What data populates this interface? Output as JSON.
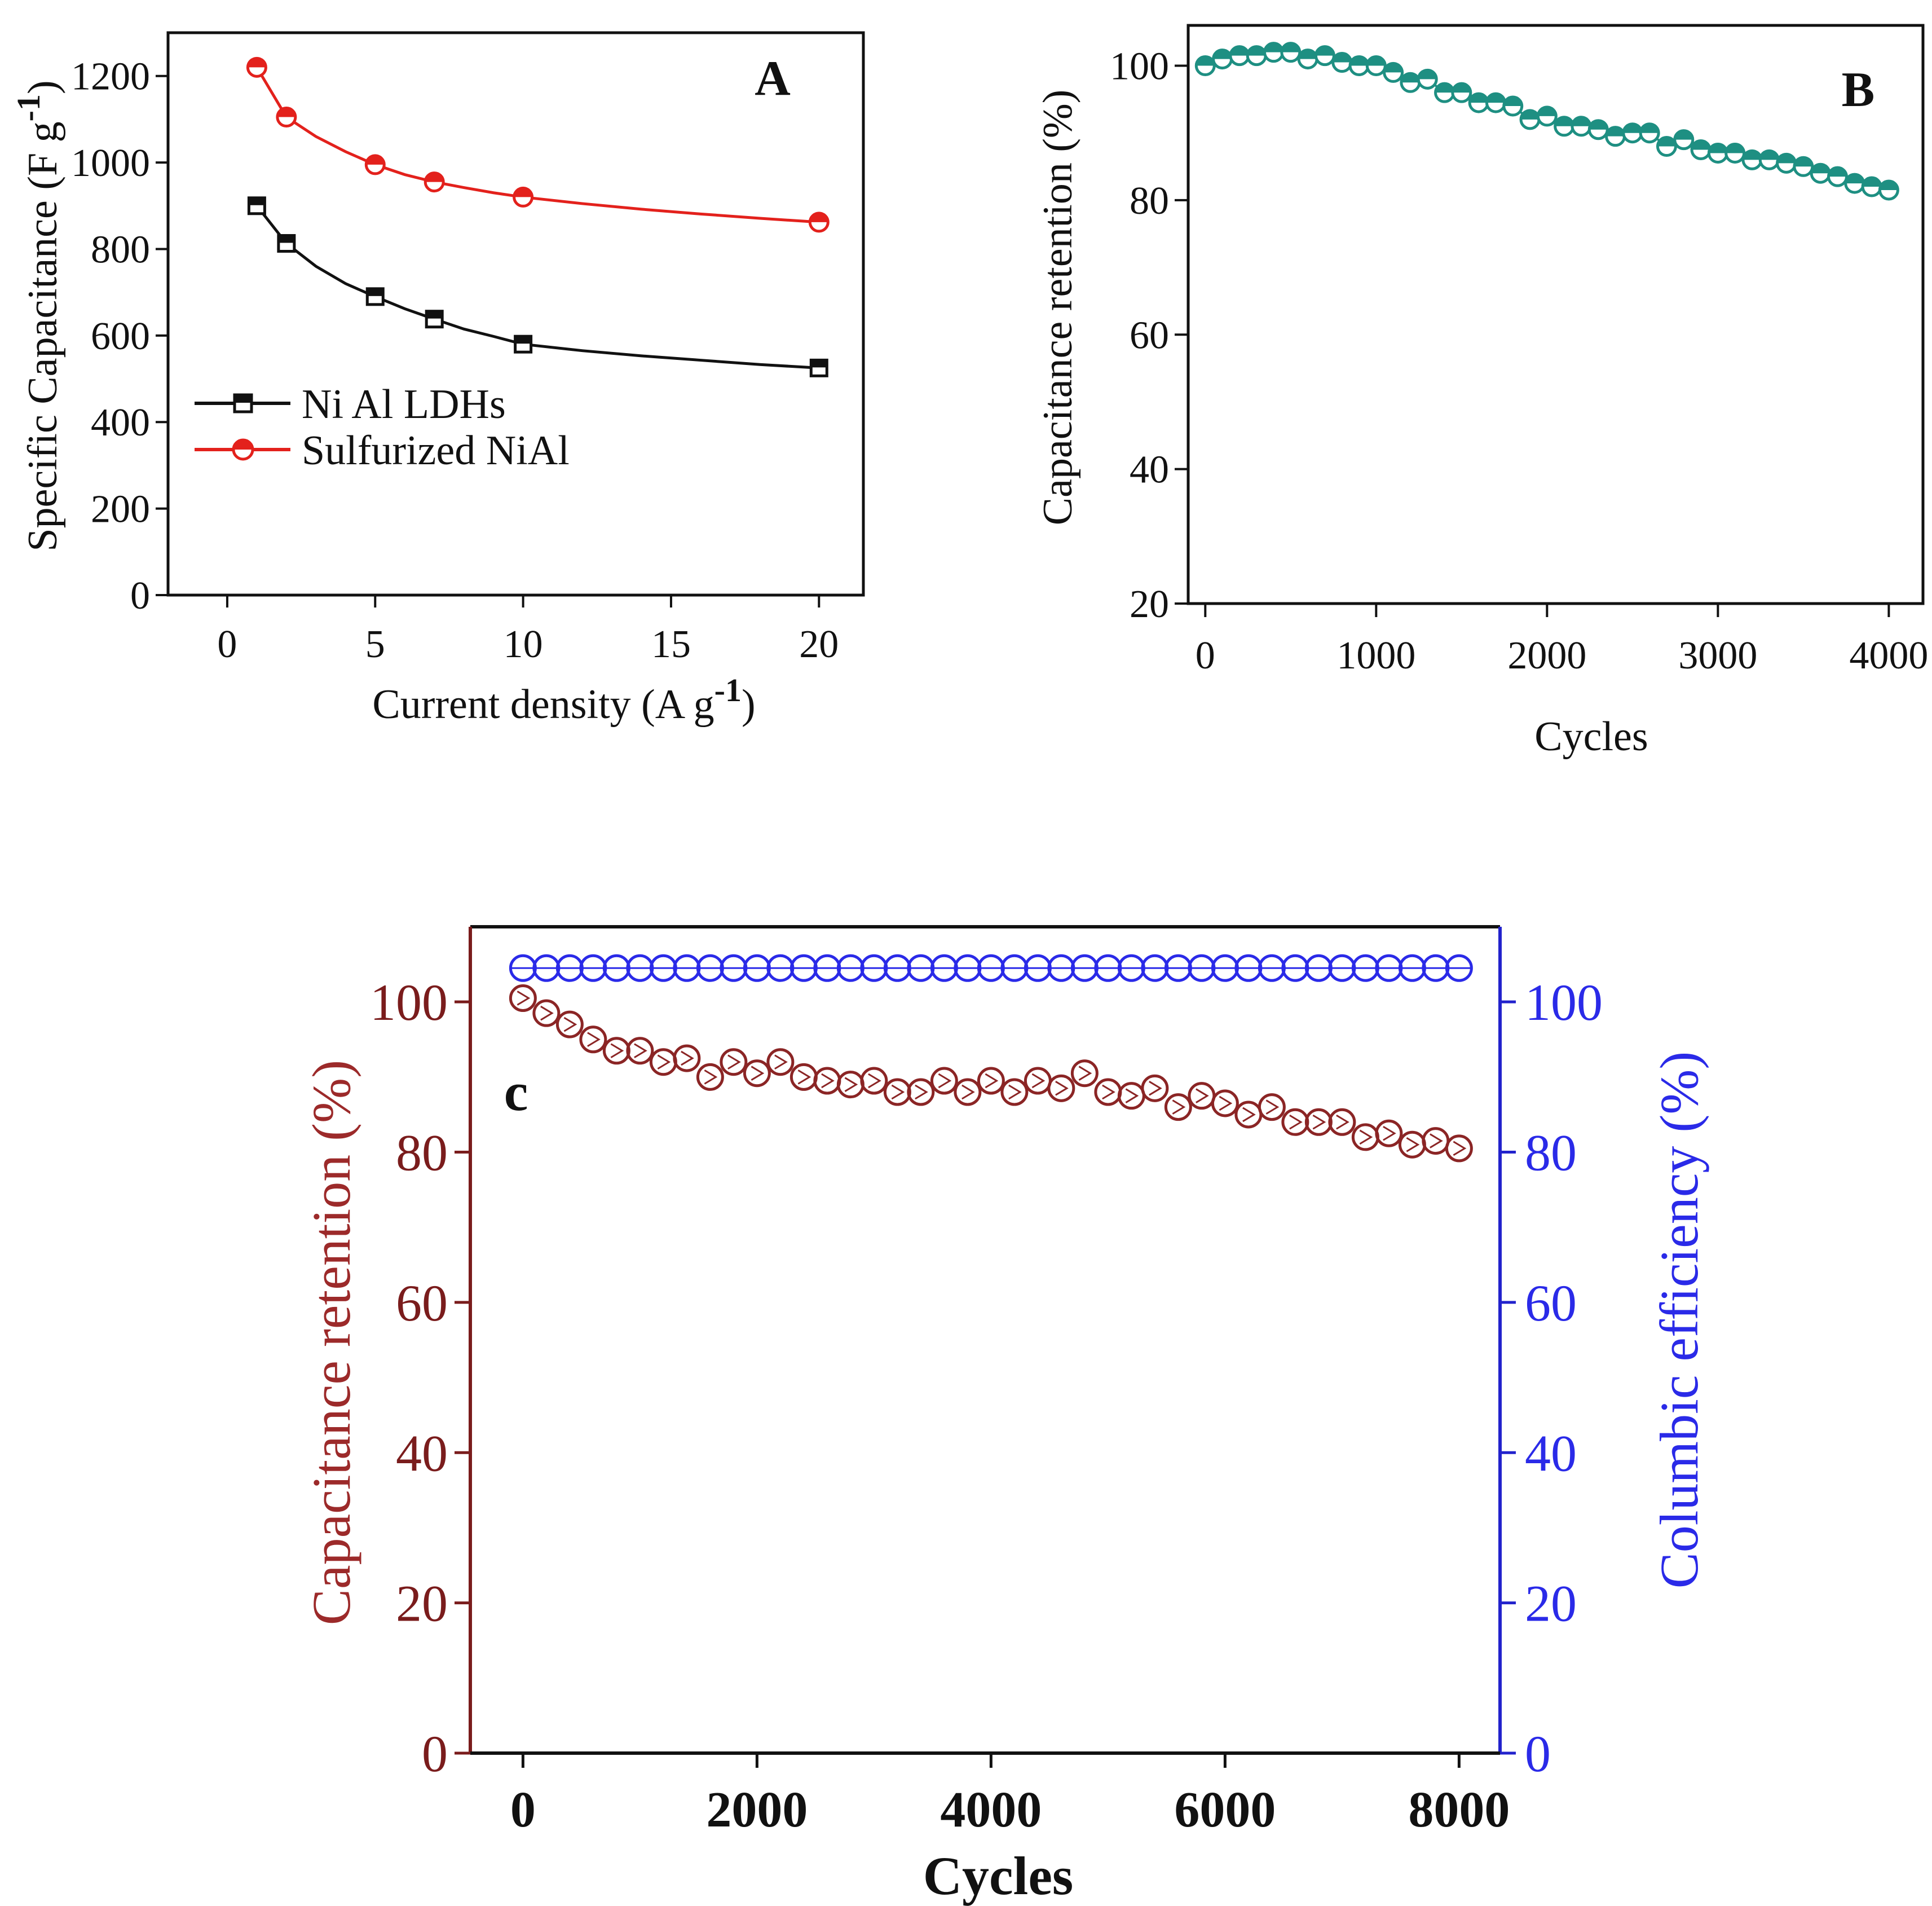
{
  "chart_data": [
    {
      "panel": "A",
      "type": "line",
      "panel_label": "A",
      "xlabel": "Current density (A g",
      "xlabel_sup": "-1",
      "xlabel_close": ")",
      "ylabel": "Specific Capacitance (F g",
      "ylabel_sup": "-1",
      "ylabel_close": ")",
      "xlim": [
        -2,
        21.5
      ],
      "ylim": [
        0,
        1300
      ],
      "xticks": [
        0,
        5,
        10,
        15,
        20
      ],
      "xtick_labels": [
        "0",
        "5",
        "10",
        "15",
        "20"
      ],
      "yticks": [
        0,
        200,
        400,
        600,
        800,
        1000,
        1200
      ],
      "ytick_labels": [
        "0",
        "200",
        "400",
        "600",
        "800",
        "1000",
        "1200"
      ],
      "legend_position": "center-left",
      "series": [
        {
          "name": "Ni Al LDHs",
          "color": "#111111",
          "marker": "square",
          "x": [
            1,
            2,
            5,
            7,
            10,
            20
          ],
          "y": [
            900,
            813,
            690,
            638,
            580,
            525
          ],
          "curve_x": [
            1,
            2,
            3,
            4,
            5,
            6,
            7,
            8,
            9,
            10,
            12,
            14,
            16,
            18,
            20
          ],
          "curve_y": [
            900,
            813,
            760,
            720,
            690,
            662,
            638,
            615,
            598,
            580,
            565,
            553,
            543,
            533,
            525
          ]
        },
        {
          "name": "Sulfurized NiAl",
          "color": "#e3211c",
          "marker": "circle",
          "x": [
            1,
            2,
            5,
            7,
            10,
            20
          ],
          "y": [
            1220,
            1105,
            995,
            955,
            920,
            862
          ],
          "curve_x": [
            1,
            2,
            3,
            4,
            5,
            6,
            7,
            8,
            9,
            10,
            12,
            14,
            16,
            18,
            20
          ],
          "curve_y": [
            1220,
            1105,
            1060,
            1025,
            995,
            972,
            955,
            942,
            930,
            920,
            905,
            892,
            881,
            871,
            862
          ]
        }
      ]
    },
    {
      "panel": "B",
      "type": "line",
      "panel_label": "B",
      "xlabel": "Cycles",
      "ylabel": "Capacitance retention (%)",
      "xlim": [
        -100,
        4200
      ],
      "ylim": [
        20,
        106
      ],
      "xticks": [
        0,
        1000,
        2000,
        3000,
        4000
      ],
      "xtick_labels": [
        "0",
        "1000",
        "2000",
        "3000",
        "4000"
      ],
      "yticks": [
        20,
        40,
        60,
        80,
        100
      ],
      "ytick_labels": [
        "20",
        "40",
        "60",
        "80",
        "100"
      ],
      "series": [
        {
          "name": "Capacitance retention",
          "color": "#1e8f82",
          "marker": "circle",
          "x": [
            0,
            100,
            200,
            300,
            400,
            500,
            600,
            700,
            800,
            900,
            1000,
            1100,
            1200,
            1300,
            1400,
            1500,
            1600,
            1700,
            1800,
            1900,
            2000,
            2100,
            2200,
            2300,
            2400,
            2500,
            2600,
            2700,
            2800,
            2900,
            3000,
            3100,
            3200,
            3300,
            3400,
            3500,
            3600,
            3700,
            3800,
            3900,
            4000
          ],
          "y": [
            100,
            101,
            101.5,
            101.5,
            102,
            102,
            101,
            101.5,
            100.5,
            100,
            100,
            99,
            97.5,
            98,
            96,
            96,
            94.5,
            94.5,
            94,
            92,
            92.5,
            91,
            91,
            90.5,
            89.5,
            90,
            90,
            88,
            89,
            87.5,
            87,
            87,
            86,
            86,
            85.5,
            85,
            84,
            83.5,
            82.5,
            82,
            81.5
          ]
        }
      ]
    },
    {
      "panel": "c",
      "type": "scatter",
      "panel_label": "c",
      "xlabel": "Cycles",
      "ylabel_left": "Capacitance retention (%)",
      "ylabel_right": "Columbic efficiency (%)",
      "xlim": [
        -450,
        8350
      ],
      "ylim_left": [
        0,
        110
      ],
      "ylim_right": [
        0,
        110
      ],
      "xticks": [
        0,
        2000,
        4000,
        6000,
        8000
      ],
      "xtick_labels": [
        "0",
        "2000",
        "4000",
        "6000",
        "8000"
      ],
      "yticks_left": [
        0,
        20,
        40,
        60,
        80,
        100
      ],
      "ytick_labels_left": [
        "0",
        "20",
        "40",
        "60",
        "80",
        "100"
      ],
      "yticks_right": [
        0,
        20,
        40,
        60,
        80,
        100
      ],
      "ytick_labels_right": [
        "0",
        "20",
        "40",
        "60",
        "80",
        "100"
      ],
      "series": [
        {
          "name": "Capacitance retention",
          "axis": "left",
          "color": "#8b2525",
          "marker": "circle",
          "x": [
            0,
            200,
            400,
            600,
            800,
            1000,
            1200,
            1400,
            1600,
            1800,
            2000,
            2200,
            2400,
            2600,
            2800,
            3000,
            3200,
            3400,
            3600,
            3800,
            4000,
            4200,
            4400,
            4600,
            4800,
            5000,
            5200,
            5400,
            5600,
            5800,
            6000,
            6200,
            6400,
            6600,
            6800,
            7000,
            7200,
            7400,
            7600,
            7800,
            8000
          ],
          "y": [
            100.5,
            98.5,
            97,
            95,
            93.5,
            93.5,
            92,
            92.5,
            90,
            92,
            90.5,
            92,
            90,
            89.5,
            89,
            89.5,
            88,
            88,
            89.5,
            88,
            89.5,
            88,
            89.5,
            88.5,
            90.5,
            88,
            87.5,
            88.5,
            86,
            87.5,
            86.5,
            85,
            86,
            84,
            84,
            84,
            82,
            82.5,
            81,
            81.5,
            80.5
          ]
        },
        {
          "name": "Columbic efficiency",
          "axis": "right",
          "color": "#2a2ae8",
          "marker": "circle",
          "x": [
            0,
            200,
            400,
            600,
            800,
            1000,
            1200,
            1400,
            1600,
            1800,
            2000,
            2200,
            2400,
            2600,
            2800,
            3000,
            3200,
            3400,
            3600,
            3800,
            4000,
            4200,
            4400,
            4600,
            4800,
            5000,
            5200,
            5400,
            5600,
            5800,
            6000,
            6200,
            6400,
            6600,
            6800,
            7000,
            7200,
            7400,
            7600,
            7800,
            8000
          ],
          "y": [
            104.5,
            104.5,
            104.5,
            104.5,
            104.5,
            104.5,
            104.5,
            104.5,
            104.5,
            104.5,
            104.5,
            104.5,
            104.5,
            104.5,
            104.5,
            104.5,
            104.5,
            104.5,
            104.5,
            104.5,
            104.5,
            104.5,
            104.5,
            104.5,
            104.5,
            104.5,
            104.5,
            104.5,
            104.5,
            104.5,
            104.5,
            104.5,
            104.5,
            104.5,
            104.5,
            104.5,
            104.5,
            104.5,
            104.5,
            104.5,
            104.5
          ]
        }
      ]
    }
  ]
}
